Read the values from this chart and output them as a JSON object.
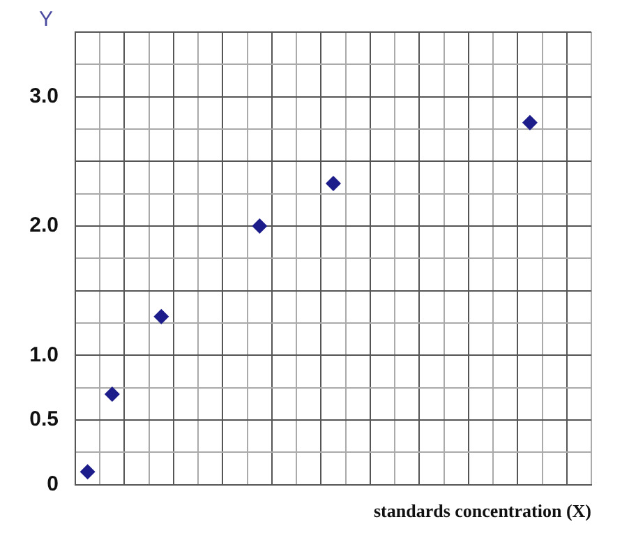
{
  "chart_data": {
    "type": "scatter",
    "xlabel": "standards concentration (X)",
    "ylabel": "Y",
    "categories": [
      null,
      null,
      null,
      null,
      null,
      null,
      null,
      null,
      null,
      null,
      null,
      null,
      null,
      null,
      null,
      null,
      null,
      null,
      null,
      null,
      null
    ],
    "series": [
      {
        "color": "#1c1c8a",
        "values": [
          0.1,
          0.7,
          null,
          1.3,
          null,
          null,
          null,
          2.0,
          null,
          null,
          2.33,
          null,
          null,
          null,
          null,
          null,
          null,
          null,
          2.8,
          null,
          null
        ]
      }
    ],
    "ylim": [
      0,
      3.5
    ],
    "yticks": [
      0,
      {
        "value": 0.25,
        "label": null
      },
      0.5,
      {
        "value": 0.75,
        "label": null
      },
      {
        "value": 1,
        "label": "1.0"
      },
      {
        "value": 1.25,
        "label": null
      },
      {
        "value": 1.5,
        "label": null
      },
      {
        "value": 1.75,
        "label": null
      },
      {
        "value": 2,
        "label": "2.0"
      },
      {
        "value": 2.25,
        "label": null
      },
      {
        "value": 2.5,
        "label": null
      },
      {
        "value": 2.75,
        "label": null
      },
      {
        "value": 3,
        "label": "3.0"
      },
      {
        "value": 3.25,
        "label": null
      },
      {
        "value": 3.5,
        "label": null
      }
    ],
    "grid": true,
    "marker": "diamond",
    "legend": false,
    "tick_labels": "y"
  }
}
